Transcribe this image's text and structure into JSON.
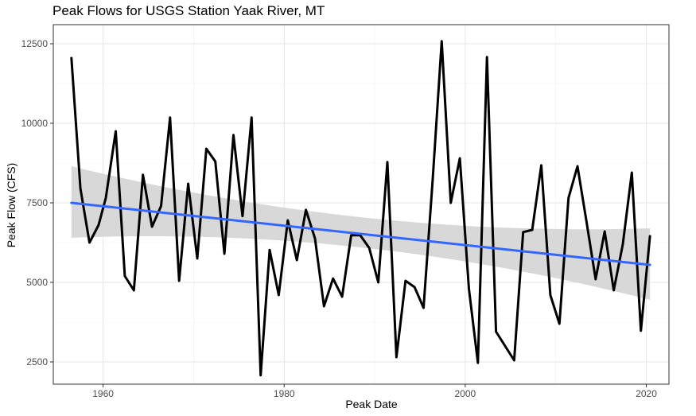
{
  "chart_data": {
    "type": "line",
    "title": "Peak Flows for USGS Station Yaak River, MT",
    "xlabel": "Peak Date",
    "ylabel": "Peak Flow (CFS)",
    "xlim": [
      1954.5,
      2022.5
    ],
    "ylim": [
      1800,
      13100
    ],
    "x_ticks": [
      1960,
      1980,
      2000,
      2020
    ],
    "y_ticks": [
      2500,
      5000,
      7500,
      10000,
      12500
    ],
    "x_tick_labels": [
      "1960",
      "1980",
      "2000",
      "2020"
    ],
    "y_tick_labels": [
      "2500",
      "5000",
      "7500",
      "10000",
      "12500"
    ],
    "grid": true,
    "series": [
      {
        "color": "#000000",
        "points": [
          [
            1956.5,
            12050
          ],
          [
            1957.5,
            7950
          ],
          [
            1958.5,
            6250
          ],
          [
            1959.5,
            6800
          ],
          [
            1960.3,
            7650
          ],
          [
            1961.4,
            9750
          ],
          [
            1962.4,
            5200
          ],
          [
            1963.4,
            4750
          ],
          [
            1964.4,
            8380
          ],
          [
            1965.4,
            6750
          ],
          [
            1966.4,
            7400
          ],
          [
            1967.4,
            10180
          ],
          [
            1968.4,
            5050
          ],
          [
            1969.4,
            8100
          ],
          [
            1970.4,
            5750
          ],
          [
            1971.4,
            9200
          ],
          [
            1972.4,
            8800
          ],
          [
            1973.4,
            5900
          ],
          [
            1974.4,
            9630
          ],
          [
            1975.4,
            7080
          ],
          [
            1976.4,
            10180
          ],
          [
            1977.4,
            2080
          ],
          [
            1978.4,
            6020
          ],
          [
            1979.4,
            4600
          ],
          [
            1980.4,
            6950
          ],
          [
            1981.4,
            5700
          ],
          [
            1982.4,
            7280
          ],
          [
            1983.4,
            6380
          ],
          [
            1984.4,
            4250
          ],
          [
            1985.4,
            5120
          ],
          [
            1986.4,
            4550
          ],
          [
            1987.4,
            6480
          ],
          [
            1988.4,
            6480
          ],
          [
            1989.4,
            6080
          ],
          [
            1990.4,
            5000
          ],
          [
            1991.4,
            8780
          ],
          [
            1992.4,
            2650
          ],
          [
            1993.4,
            5050
          ],
          [
            1994.4,
            4850
          ],
          [
            1995.4,
            4200
          ],
          [
            1996.4,
            8200
          ],
          [
            1997.4,
            12580
          ],
          [
            1998.4,
            7500
          ],
          [
            1999.4,
            8900
          ],
          [
            2000.4,
            4800
          ],
          [
            2001.4,
            2470
          ],
          [
            2002.4,
            12080
          ],
          [
            2003.4,
            3450
          ],
          [
            2004.4,
            3000
          ],
          [
            2005.4,
            2550
          ],
          [
            2006.4,
            6580
          ],
          [
            2007.4,
            6650
          ],
          [
            2008.4,
            8680
          ],
          [
            2009.4,
            4600
          ],
          [
            2010.4,
            3700
          ],
          [
            2011.4,
            7650
          ],
          [
            2012.4,
            8650
          ],
          [
            2013.4,
            6900
          ],
          [
            2014.4,
            5100
          ],
          [
            2015.4,
            6600
          ],
          [
            2016.4,
            4750
          ],
          [
            2017.4,
            6200
          ],
          [
            2018.4,
            8450
          ],
          [
            2019.4,
            3480
          ],
          [
            2020.4,
            6450
          ]
        ]
      }
    ],
    "trend": {
      "color": "#3366ff",
      "band_color": "#d6d6d6",
      "x": [
        1956.5,
        2020.4
      ],
      "y": [
        7500,
        5550
      ],
      "ci_low": [
        6400,
        4450
      ],
      "ci_high": [
        8650,
        6700
      ],
      "ci_mid_x": 1988.4,
      "ci_mid_low": [
        6100
      ],
      "ci_mid_high": [
        7050
      ]
    }
  }
}
